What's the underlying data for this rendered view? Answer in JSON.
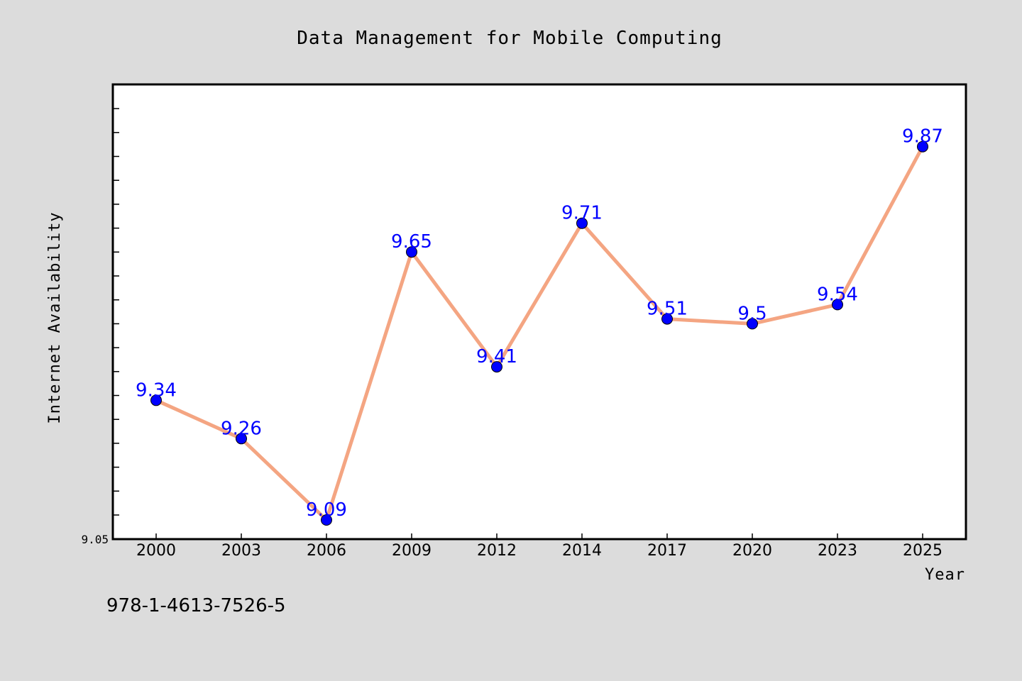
{
  "chart_data": {
    "type": "line",
    "title": "Data Management for Mobile Computing",
    "xlabel": "Year",
    "ylabel": "Internet Availability",
    "categories": [
      "2000",
      "2003",
      "2006",
      "2009",
      "2012",
      "2014",
      "2017",
      "2020",
      "2023",
      "2025"
    ],
    "series": [
      {
        "values": [
          9.34,
          9.26,
          9.09,
          9.65,
          9.41,
          9.71,
          9.51,
          9.5,
          9.54,
          9.87
        ],
        "data_labels": [
          "9.34",
          "9.26",
          "9.09",
          "9.65",
          "9.41",
          "9.71",
          "9.51",
          "9.5",
          "9.54",
          "9.87"
        ]
      }
    ],
    "ylim": [
      9.05,
      10.0
    ],
    "ytick_labels": [
      "9.05"
    ],
    "grid": false,
    "legend": "none"
  },
  "footer_text": "978-1-4613-7526-5",
  "colors": {
    "background": "#dcdcdc",
    "plot_background": "#ffffff",
    "line": "#f4a582",
    "marker": "#0000ff",
    "data_label": "#0000ff"
  }
}
